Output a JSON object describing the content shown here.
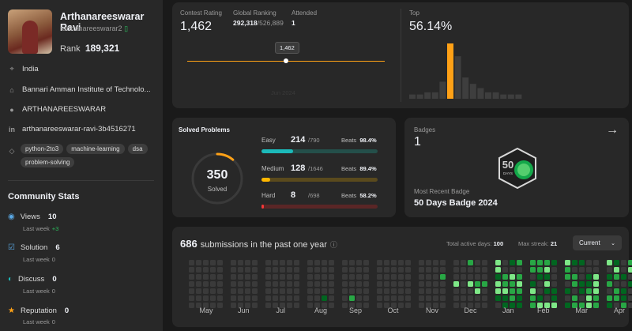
{
  "profile": {
    "name": "Arthanareeswarar Ravi",
    "handle": "rarthanareeswarar2",
    "rank_label": "Rank",
    "rank_value": "189,321",
    "location": "India",
    "institute": "Bannari Amman Institute of Technolo...",
    "github": "ARTHANAREESWARAR",
    "linkedin": "arthanareeswarar-ravi-3b4516271",
    "tags": [
      "python-2to3",
      "machine-learning",
      "dsa",
      "problem-solving"
    ]
  },
  "community": {
    "title": "Community Stats",
    "views": {
      "label": "Views",
      "value": "10",
      "sub": "Last week",
      "delta": "+3"
    },
    "solution": {
      "label": "Solution",
      "value": "6",
      "sub": "Last week",
      "delta": "0"
    },
    "discuss": {
      "label": "Discuss",
      "value": "0",
      "sub": "Last week",
      "delta": "0"
    },
    "reputation": {
      "label": "Reputation",
      "value": "0",
      "sub": "Last week",
      "delta": "0"
    }
  },
  "contest": {
    "rating_label": "Contest Rating",
    "rating": "1,462",
    "global_label": "Global Ranking",
    "global_rank": "292,318",
    "global_total": "/526,889",
    "attended_label": "Attended",
    "attended": "1",
    "tooltip": "1,462",
    "faded_date": "Jun 2024",
    "top_label": "Top",
    "top_value": "56.14%",
    "histogram": [
      2,
      2,
      3,
      3,
      8,
      26,
      20,
      10,
      7,
      5,
      3,
      3,
      2,
      2,
      2
    ],
    "highlight_index": 5,
    "colors": {
      "accent": "#ffa116",
      "bar": "#3e3e3e"
    }
  },
  "solved": {
    "title": "Solved Problems",
    "total": "350",
    "total_label": "Solved",
    "ring_fraction": 0.11,
    "easy": {
      "label": "Easy",
      "count": "214",
      "total": "/790",
      "beats_label": "Beats",
      "beats": "98.4%",
      "fraction": 0.271,
      "color": "#1cbaba",
      "track": "#244f4a"
    },
    "medium": {
      "label": "Medium",
      "count": "128",
      "total": "/1646",
      "beats_label": "Beats",
      "beats": "89.4%",
      "fraction": 0.078,
      "color": "#ffb700",
      "track": "#5a4a1d"
    },
    "hard": {
      "label": "Hard",
      "count": "8",
      "total": "/698",
      "beats_label": "Beats",
      "beats": "58.2%",
      "fraction": 0.011,
      "color": "#f63737",
      "track": "#5a2626"
    }
  },
  "badges": {
    "label": "Badges",
    "count": "1",
    "recent_label": "Most Recent Badge",
    "recent_name": "50 Days Badge 2024",
    "badge_text": "DAYS",
    "badge_number": "50"
  },
  "submissions": {
    "count": "686",
    "text": "submissions in the past one year",
    "active_label": "Total active days:",
    "active_value": "100",
    "streak_label": "Max streak:",
    "streak_value": "21",
    "dropdown": "Current",
    "months": [
      "May",
      "Jun",
      "Jul",
      "Aug",
      "Sep",
      "Oct",
      "Nov",
      "Dec",
      "Jan",
      "Feb",
      "Mar",
      "Apr"
    ],
    "colors": {
      "empty": "#3a3a3a",
      "l1": "#016620",
      "l2": "#28a745",
      "l3": "#7ee787"
    }
  }
}
